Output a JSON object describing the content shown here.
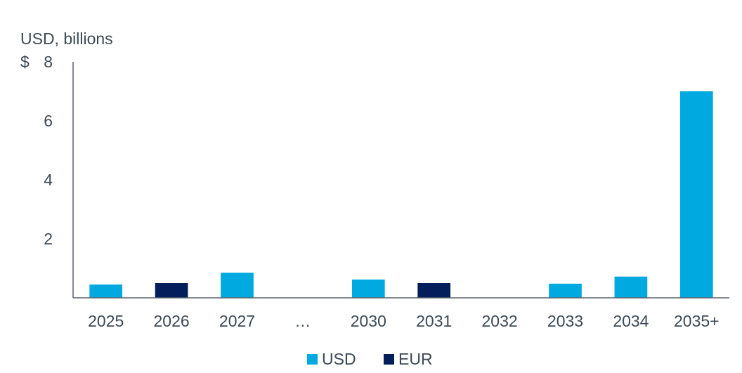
{
  "chart_data": {
    "type": "bar",
    "unit_label": "USD, billions",
    "y_prefix": "$",
    "categories": [
      "2025",
      "2026",
      "2027",
      "…",
      "2030",
      "2031",
      "2032",
      "2033",
      "2034",
      "2035+"
    ],
    "series": [
      {
        "name": "USD",
        "color": "#00a9e0",
        "values": [
          0.45,
          null,
          0.85,
          null,
          0.62,
          null,
          null,
          0.48,
          0.72,
          7.0
        ]
      },
      {
        "name": "EUR",
        "color": "#041e5b",
        "values": [
          null,
          0.5,
          null,
          null,
          null,
          0.5,
          null,
          null,
          null,
          null
        ]
      }
    ],
    "yticks": [
      2,
      4,
      6,
      8
    ],
    "ylim": [
      0,
      8
    ],
    "grid": false,
    "legend_position": "bottom-center"
  }
}
